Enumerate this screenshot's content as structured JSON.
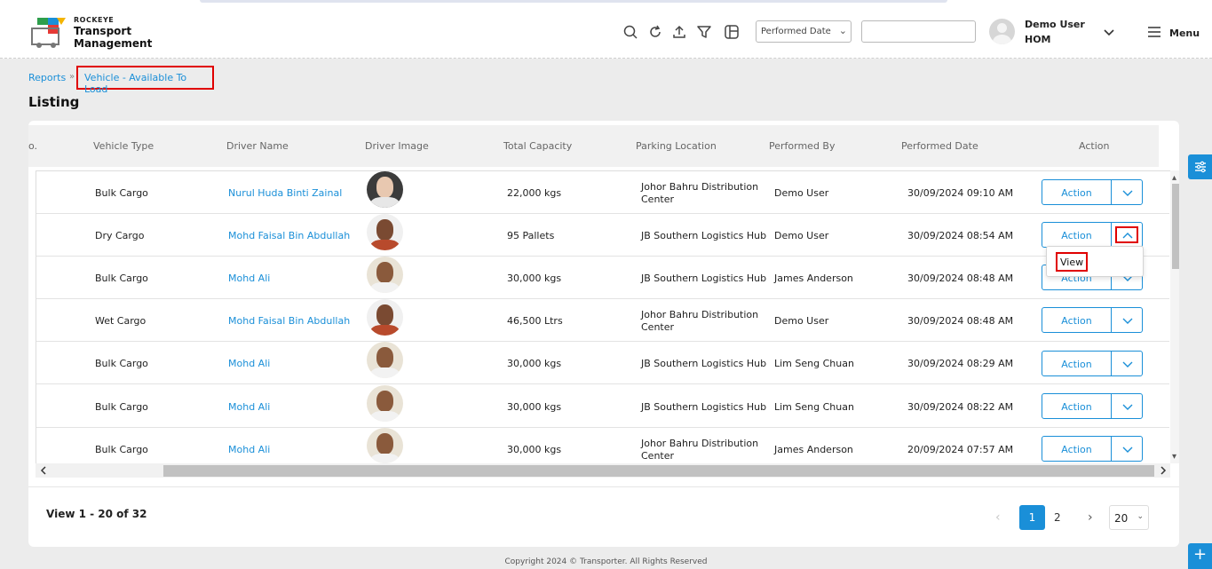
{
  "header": {
    "brand_small": "ROCKEYE",
    "brand_big": "Transport Management",
    "date_filter": "Performed Date",
    "user_name": "Demo User",
    "user_location": "HOM",
    "menu_label": "Menu"
  },
  "breadcrumb": {
    "root": "Reports",
    "separator": "»",
    "current": "Vehicle - Available To Load"
  },
  "page_title": "Listing",
  "table": {
    "columns": [
      "o.",
      "Vehicle Type",
      "Driver Name",
      "Driver Image",
      "Total Capacity",
      "Parking Location",
      "Performed By",
      "Performed Date",
      "Action"
    ],
    "rows": [
      {
        "vehicle_type": "Bulk Cargo",
        "driver": "Nurul Huda Binti Zainal",
        "capacity": "22,000 kgs",
        "location": "Johor Bahru Distribution Center",
        "by": "Demo User",
        "date": "30/09/2024 09:10 AM",
        "action": "Action"
      },
      {
        "vehicle_type": "Dry Cargo",
        "driver": "Mohd Faisal Bin Abdullah",
        "capacity": "95 Pallets",
        "location": "JB Southern Logistics Hub",
        "by": "Demo User",
        "date": "30/09/2024 08:54 AM",
        "action": "Action"
      },
      {
        "vehicle_type": "Bulk Cargo",
        "driver": "Mohd Ali",
        "capacity": "30,000 kgs",
        "location": "JB Southern Logistics Hub",
        "by": "James Anderson",
        "date": "30/09/2024 08:48 AM",
        "action": "Action"
      },
      {
        "vehicle_type": "Wet Cargo",
        "driver": "Mohd Faisal Bin Abdullah",
        "capacity": "46,500 Ltrs",
        "location": "Johor Bahru Distribution Center",
        "by": "Demo User",
        "date": "30/09/2024 08:48 AM",
        "action": "Action"
      },
      {
        "vehicle_type": "Bulk Cargo",
        "driver": "Mohd Ali",
        "capacity": "30,000 kgs",
        "location": "JB Southern Logistics Hub",
        "by": "Lim Seng Chuan",
        "date": "30/09/2024 08:29 AM",
        "action": "Action"
      },
      {
        "vehicle_type": "Bulk Cargo",
        "driver": "Mohd Ali",
        "capacity": "30,000 kgs",
        "location": "JB Southern Logistics Hub",
        "by": "Lim Seng Chuan",
        "date": "30/09/2024 08:22 AM",
        "action": "Action"
      },
      {
        "vehicle_type": "Bulk Cargo",
        "driver": "Mohd Ali",
        "capacity": "30,000 kgs",
        "location": "Johor Bahru Distribution Center",
        "by": "James Anderson",
        "date": "20/09/2024 07:57 AM",
        "action": "Action"
      }
    ],
    "popup_item": "View"
  },
  "pagination": {
    "info": "View 1 - 20 of 32",
    "pages": [
      "1",
      "2"
    ],
    "page_size": "20"
  },
  "footer": "Copyright 2024 © Transporter. All Rights Reserved",
  "colors": {
    "accent": "#1a8fd8",
    "highlight": "#e00000"
  }
}
